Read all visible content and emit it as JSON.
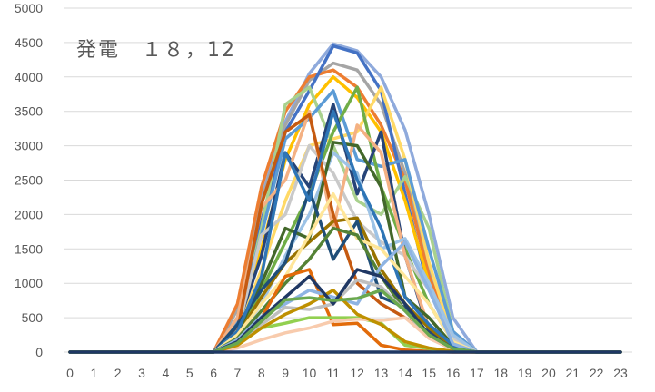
{
  "chart_data": {
    "type": "line",
    "title": "発電　１８，12",
    "xlabel": "",
    "ylabel": "",
    "x": [
      0,
      1,
      2,
      3,
      4,
      5,
      6,
      7,
      8,
      9,
      10,
      11,
      12,
      13,
      14,
      15,
      16,
      17,
      18,
      19,
      20,
      21,
      22,
      23
    ],
    "xlim": [
      0,
      23
    ],
    "ylim": [
      0,
      5000
    ],
    "y_ticks": [
      0,
      500,
      1000,
      1500,
      2000,
      2500,
      3000,
      3500,
      4000,
      4500,
      5000
    ],
    "grid": true,
    "legend": "none",
    "series": [
      {
        "color": "#8faadc",
        "values": [
          0,
          0,
          0,
          0,
          0,
          0,
          0,
          650,
          2250,
          3350,
          4050,
          4480,
          4380,
          4000,
          3230,
          2000,
          500,
          0,
          0,
          0,
          0,
          0,
          0,
          0
        ]
      },
      {
        "color": "#a5a5a5",
        "values": [
          0,
          0,
          0,
          0,
          0,
          0,
          0,
          620,
          2200,
          3300,
          3950,
          4200,
          4100,
          3600,
          2600,
          1200,
          300,
          0,
          0,
          0,
          0,
          0,
          0,
          0
        ]
      },
      {
        "color": "#ed7d31",
        "values": [
          0,
          0,
          0,
          0,
          0,
          0,
          0,
          700,
          2400,
          3500,
          4000,
          4100,
          3850,
          3300,
          2500,
          1100,
          250,
          0,
          0,
          0,
          0,
          0,
          0,
          0
        ]
      },
      {
        "color": "#4472c4",
        "values": [
          0,
          0,
          0,
          0,
          0,
          0,
          0,
          500,
          1900,
          3200,
          3800,
          4450,
          4350,
          3800,
          2300,
          900,
          200,
          0,
          0,
          0,
          0,
          0,
          0,
          0
        ]
      },
      {
        "color": "#ffc000",
        "values": [
          0,
          0,
          0,
          0,
          0,
          0,
          0,
          400,
          1500,
          2800,
          3600,
          4000,
          3700,
          3200,
          2200,
          1000,
          200,
          0,
          0,
          0,
          0,
          0,
          0,
          0
        ]
      },
      {
        "color": "#a9d18e",
        "values": [
          0,
          0,
          0,
          0,
          0,
          0,
          0,
          350,
          1800,
          3600,
          3850,
          3000,
          2200,
          2000,
          2550,
          1800,
          300,
          0,
          0,
          0,
          0,
          0,
          0,
          0
        ]
      },
      {
        "color": "#ffd966",
        "values": [
          0,
          0,
          0,
          0,
          0,
          0,
          0,
          300,
          1200,
          2200,
          3000,
          3100,
          3200,
          3850,
          2800,
          1300,
          200,
          0,
          0,
          0,
          0,
          0,
          0,
          0
        ]
      },
      {
        "color": "#5b9bd5",
        "values": [
          0,
          0,
          0,
          0,
          0,
          0,
          0,
          450,
          1700,
          3100,
          3400,
          3800,
          2800,
          2700,
          2800,
          1500,
          300,
          0,
          0,
          0,
          0,
          0,
          0,
          0
        ]
      },
      {
        "color": "#70ad47",
        "values": [
          0,
          0,
          0,
          0,
          0,
          0,
          0,
          250,
          900,
          1600,
          2300,
          3200,
          3850,
          2400,
          1500,
          700,
          150,
          0,
          0,
          0,
          0,
          0,
          0,
          0
        ]
      },
      {
        "color": "#264478",
        "values": [
          0,
          0,
          0,
          0,
          0,
          0,
          0,
          380,
          1400,
          2900,
          2400,
          3600,
          2300,
          3200,
          1400,
          300,
          80,
          0,
          0,
          0,
          0,
          0,
          0,
          0
        ]
      },
      {
        "color": "#c9c9c9",
        "values": [
          0,
          0,
          0,
          0,
          0,
          0,
          0,
          300,
          1700,
          2000,
          3000,
          2600,
          1900,
          1600,
          1400,
          900,
          200,
          0,
          0,
          0,
          0,
          0,
          0,
          0
        ]
      },
      {
        "color": "#f4b183",
        "values": [
          0,
          0,
          0,
          0,
          0,
          0,
          0,
          500,
          2100,
          2500,
          3500,
          1800,
          3300,
          2900,
          1400,
          350,
          100,
          0,
          0,
          0,
          0,
          0,
          0,
          0
        ]
      },
      {
        "color": "#9dc3e6",
        "values": [
          0,
          0,
          0,
          0,
          0,
          0,
          0,
          200,
          700,
          1400,
          2000,
          2900,
          2600,
          1500,
          1650,
          1000,
          250,
          0,
          0,
          0,
          0,
          0,
          0,
          0
        ]
      },
      {
        "color": "#997300",
        "values": [
          0,
          0,
          0,
          0,
          0,
          0,
          0,
          250,
          800,
          1300,
          1600,
          1900,
          1950,
          1200,
          700,
          350,
          80,
          0,
          0,
          0,
          0,
          0,
          0,
          0
        ]
      },
      {
        "color": "#43682b",
        "values": [
          0,
          0,
          0,
          0,
          0,
          0,
          0,
          280,
          1000,
          1800,
          1650,
          3050,
          3000,
          2400,
          800,
          500,
          100,
          0,
          0,
          0,
          0,
          0,
          0,
          0
        ]
      },
      {
        "color": "#c55a11",
        "values": [
          0,
          0,
          0,
          0,
          0,
          0,
          0,
          300,
          2150,
          3200,
          3450,
          2000,
          1000,
          700,
          500,
          250,
          50,
          0,
          0,
          0,
          0,
          0,
          0,
          0
        ]
      },
      {
        "color": "#1f4e79",
        "values": [
          0,
          0,
          0,
          0,
          0,
          0,
          0,
          400,
          900,
          1300,
          2350,
          1350,
          1900,
          800,
          650,
          250,
          60,
          0,
          0,
          0,
          0,
          0,
          0,
          0
        ]
      },
      {
        "color": "#2e75b6",
        "values": [
          0,
          0,
          0,
          0,
          0,
          0,
          0,
          300,
          1100,
          2900,
          2200,
          3500,
          2500,
          1800,
          800,
          400,
          100,
          0,
          0,
          0,
          0,
          0,
          0,
          0
        ]
      },
      {
        "color": "#ffe699",
        "values": [
          0,
          0,
          0,
          0,
          0,
          0,
          0,
          250,
          700,
          1100,
          1700,
          2300,
          1650,
          1500,
          1100,
          700,
          150,
          0,
          0,
          0,
          0,
          0,
          0,
          0
        ]
      },
      {
        "color": "#548235",
        "values": [
          0,
          0,
          0,
          0,
          0,
          0,
          0,
          200,
          600,
          1000,
          1350,
          1800,
          1700,
          1100,
          600,
          250,
          50,
          0,
          0,
          0,
          0,
          0,
          0,
          0
        ]
      },
      {
        "color": "#e26b0a",
        "values": [
          0,
          0,
          0,
          0,
          0,
          0,
          0,
          150,
          500,
          1100,
          1200,
          400,
          420,
          100,
          30,
          10,
          0,
          0,
          0,
          0,
          0,
          0,
          0,
          0
        ]
      },
      {
        "color": "#8eb4e3",
        "values": [
          0,
          0,
          0,
          0,
          0,
          0,
          0,
          180,
          520,
          700,
          900,
          800,
          700,
          1250,
          1600,
          900,
          120,
          0,
          0,
          0,
          0,
          0,
          0,
          0
        ]
      },
      {
        "color": "#92d050",
        "values": [
          0,
          0,
          0,
          0,
          0,
          0,
          0,
          120,
          350,
          420,
          500,
          500,
          500,
          420,
          100,
          50,
          10,
          0,
          0,
          0,
          0,
          0,
          0,
          0
        ]
      },
      {
        "color": "#bfbfbf",
        "values": [
          0,
          0,
          0,
          0,
          0,
          0,
          0,
          140,
          400,
          650,
          620,
          700,
          1050,
          950,
          600,
          200,
          40,
          0,
          0,
          0,
          0,
          0,
          0,
          0
        ]
      },
      {
        "color": "#f8cbad",
        "values": [
          0,
          0,
          0,
          0,
          0,
          0,
          0,
          60,
          180,
          280,
          350,
          450,
          480,
          460,
          500,
          200,
          40,
          0,
          0,
          0,
          0,
          0,
          0,
          0
        ]
      },
      {
        "color": "#bf9000",
        "values": [
          0,
          0,
          0,
          0,
          0,
          0,
          0,
          100,
          350,
          550,
          700,
          900,
          550,
          400,
          150,
          60,
          10,
          0,
          0,
          0,
          0,
          0,
          0,
          0
        ]
      },
      {
        "color": "#203864",
        "values": [
          0,
          0,
          0,
          0,
          0,
          0,
          0,
          150,
          500,
          800,
          1100,
          700,
          1200,
          1100,
          700,
          250,
          50,
          0,
          0,
          0,
          0,
          0,
          0,
          0
        ]
      },
      {
        "color": "#6aa84f",
        "values": [
          0,
          0,
          0,
          0,
          0,
          0,
          0,
          130,
          450,
          760,
          790,
          750,
          780,
          900,
          600,
          250,
          50,
          0,
          0,
          0,
          0,
          0,
          0,
          0
        ]
      },
      {
        "color": "#1f3864",
        "values": [
          0,
          0,
          0,
          0,
          0,
          0,
          0,
          0,
          0,
          0,
          0,
          0,
          0,
          0,
          0,
          0,
          0,
          0,
          0,
          0,
          0,
          0,
          0,
          0
        ]
      }
    ]
  }
}
